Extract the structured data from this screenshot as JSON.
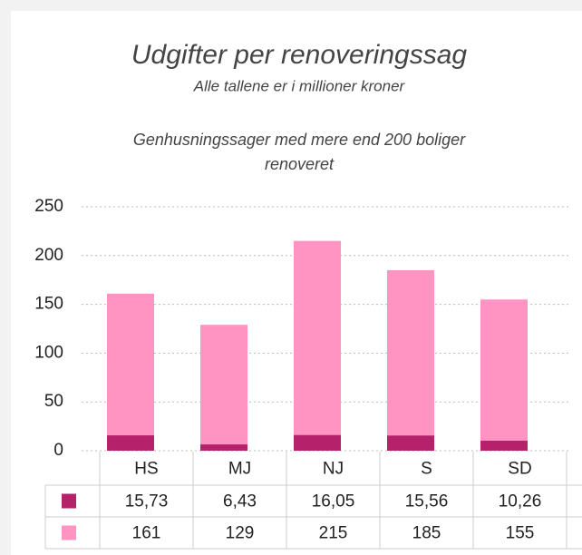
{
  "chart_data": {
    "type": "bar",
    "title": "Udgifter per renoveringssag",
    "subtitle": "Alle tallene er i millioner kroner",
    "annotation": [
      "Genhusningssager med mere end 200 boliger",
      "renoveret"
    ],
    "categories": [
      "HS",
      "MJ",
      "NJ",
      "S",
      "SD"
    ],
    "series": [
      {
        "color": "#ff94c2",
        "values": [
          161,
          129,
          215,
          185,
          155
        ]
      },
      {
        "color": "#b5226b",
        "values": [
          15.73,
          6.43,
          16.05,
          15.56,
          10.26
        ],
        "value_labels": [
          "15,73",
          "6,43",
          "16,05",
          "15,56",
          "10,26"
        ]
      }
    ],
    "ylim": [
      0,
      250
    ],
    "yticks": [
      0,
      50,
      100,
      150,
      200,
      250
    ],
    "grid": true
  }
}
